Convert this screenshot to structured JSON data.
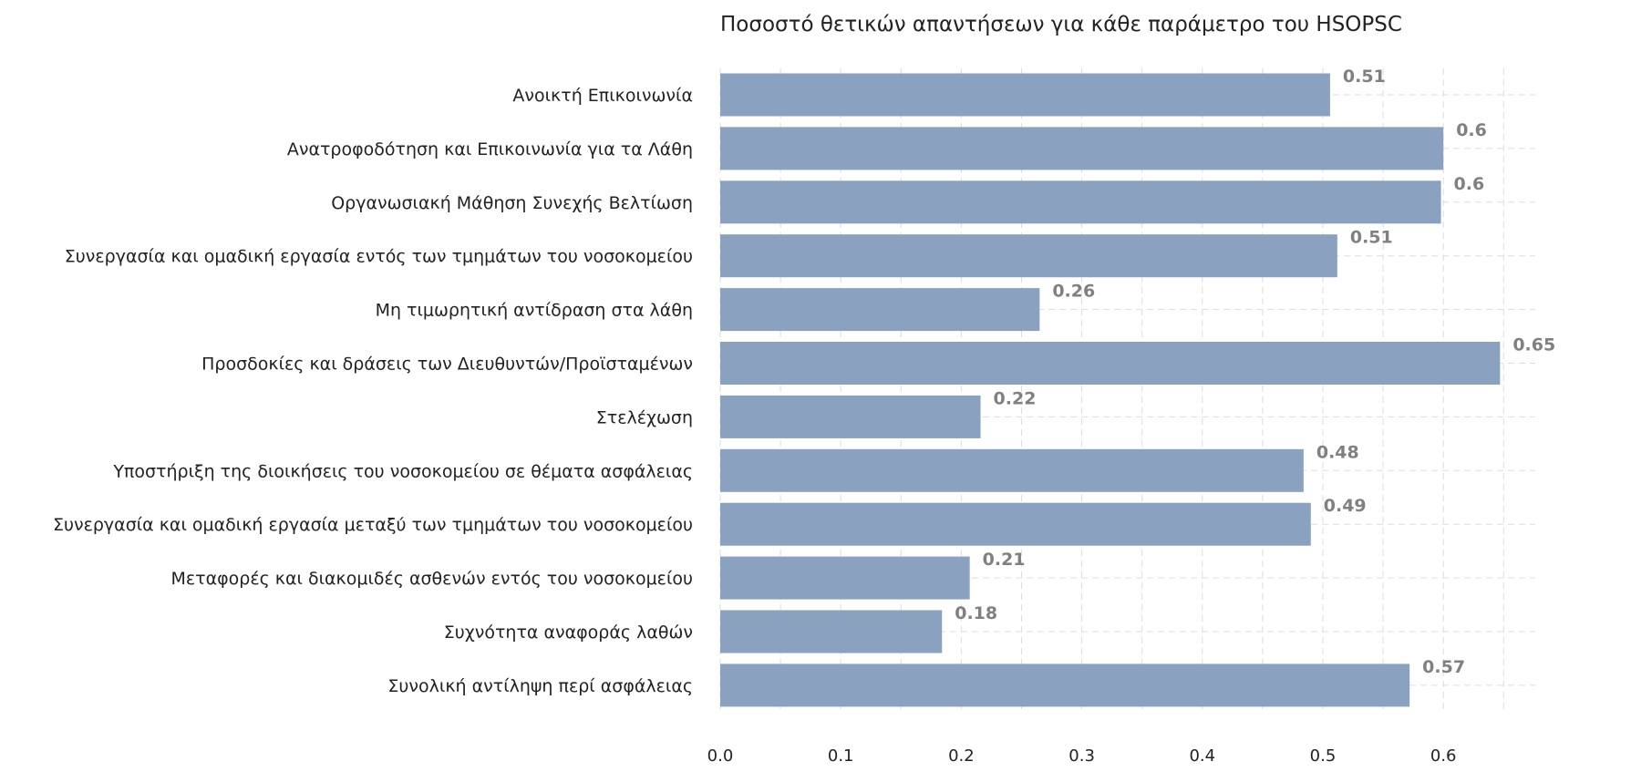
{
  "chart_data": {
    "type": "bar",
    "orientation": "horizontal",
    "title": "Ποσοστό θετικών απαντήσεων για κάθε παράμετρο του HSOPSC",
    "xlabel": "",
    "ylabel": "",
    "categories": [
      "Ανοικτή Επικοινωνία",
      "Ανατροφοδότηση και Επικοινωνία για τα Λάθη",
      "Οργανωσιακή Μάθηση Συνεχής Βελτίωση",
      "Συνεργασία και ομαδική εργασία εντός των τμημάτων του νοσοκομείου",
      "Μη τιμωρητική αντίδραση στα λάθη",
      "Προσδοκίες και δράσεις των Διευθυντών/Προϊσταμένων",
      "Στελέχωση",
      "Υποστήριξη της διοικήσεις του νοσοκομείου σε θέματα ασφάλειας",
      "Συνεργασία και ομαδική εργασία μεταξύ των τμημάτων του νοσοκομείου",
      "Μεταφορές και διακομιδές ασθενών εντός του νοσοκομείου",
      "Συχνότητα αναφοράς λαθών",
      "Συνολική αντίληψη περί ασφάλειας"
    ],
    "values": [
      0.506,
      0.6,
      0.598,
      0.512,
      0.265,
      0.647,
      0.216,
      0.484,
      0.49,
      0.207,
      0.184,
      0.572
    ],
    "value_labels": [
      "0.51",
      "0.6",
      "0.6",
      "0.51",
      "0.26",
      "0.65",
      "0.22",
      "0.48",
      "0.49",
      "0.21",
      "0.18",
      "0.57"
    ],
    "xticks": [
      "0.0",
      "0.1",
      "0.2",
      "0.3",
      "0.4",
      "0.5",
      "0.6"
    ],
    "xlim": [
      0,
      0.68
    ],
    "grid": true,
    "bar_color": "#8aa1c0",
    "label_color": "#808080",
    "grid_color": "#dddddd"
  }
}
